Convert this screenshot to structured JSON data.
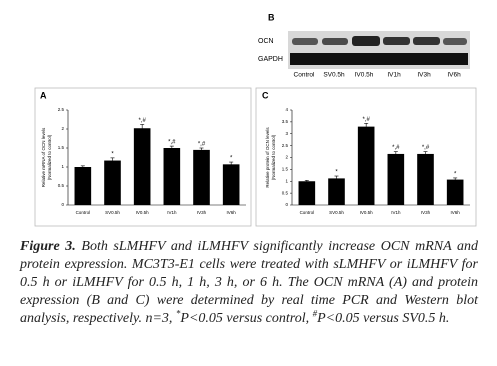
{
  "blot": {
    "panel_label": "B",
    "rows": [
      "OCN",
      "GAPDH"
    ],
    "lanes": [
      "Control",
      "SV0.5h",
      "IV0.5h",
      "IV1h",
      "IV3h",
      "IV6h"
    ]
  },
  "chart_data": [
    {
      "type": "bar",
      "panel_label": "A",
      "ylabel": [
        "Relative mRNA of OCN levels",
        "(Normalized to control)"
      ],
      "categories": [
        "Control",
        "SV0.5h",
        "IV0.5h",
        "IV1h",
        "IV3h",
        "IV6h"
      ],
      "values": [
        1.0,
        1.17,
        2.02,
        1.5,
        1.45,
        1.07
      ],
      "errors": [
        0.03,
        0.07,
        0.1,
        0.05,
        0.05,
        0.06
      ],
      "annotations": [
        null,
        "*",
        "*,#",
        "*,#",
        "*,#",
        "*"
      ],
      "color": "#000000",
      "ylim": [
        0,
        2.5
      ],
      "yticks": [
        0,
        0.5,
        1,
        1.5,
        2,
        2.5
      ]
    },
    {
      "type": "bar",
      "panel_label": "C",
      "ylabel": [
        "Relative protein of OCN levels",
        "(Normalized to control)"
      ],
      "categories": [
        "Control",
        "SV0.5h",
        "IV0.5h",
        "IV1h",
        "IV3h",
        "IV6h"
      ],
      "values": [
        1.0,
        1.12,
        3.3,
        2.15,
        2.15,
        1.07
      ],
      "errors": [
        0.04,
        0.1,
        0.14,
        0.1,
        0.1,
        0.07
      ],
      "annotations": [
        null,
        "*",
        "*,#",
        "*,#",
        "*,#",
        "*"
      ],
      "color": "#000000",
      "ylim": [
        0,
        4
      ],
      "yticks": [
        0,
        0.5,
        1,
        1.5,
        2,
        2.5,
        3,
        3.5,
        4
      ]
    }
  ],
  "caption": {
    "label": "Figure 3.",
    "text1": "Both sLMHFV and iLMHFV significantly increase OCN mRNA and protein expression. MC3T3-E1 cells were treated with sLMHFV or iLMHFV for 0.5 h or iLMHFV for 0.5 h, 1 h, 3 h, or 6 h. The OCN mRNA (A) and protein expression (B and C) were determined by real time PCR and Western blot analysis, respectively. n=3, ",
    "sup1": "*",
    "text2": "P<0.05 versus control, ",
    "sup2": "#",
    "text3": "P<0.05 versus SV0.5 h."
  }
}
